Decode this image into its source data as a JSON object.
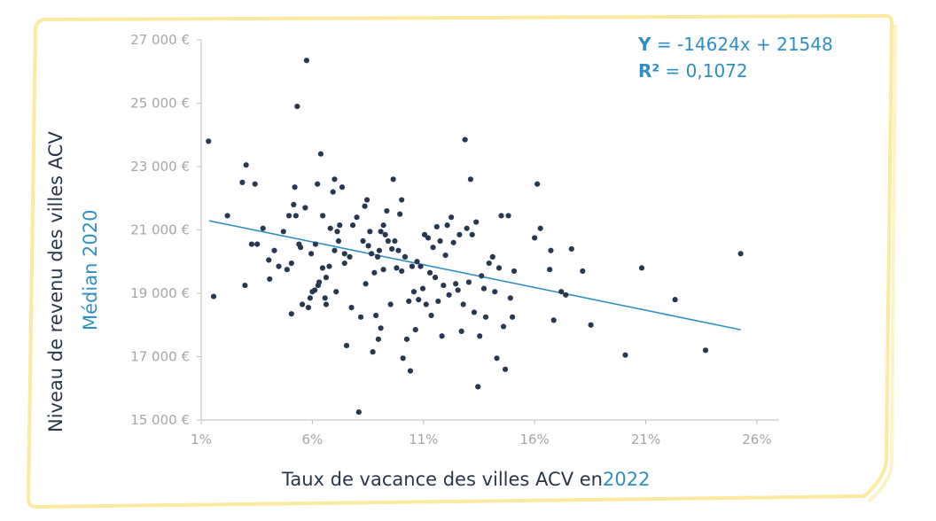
{
  "chart_data": {
    "type": "scatter",
    "xlabel_main": "Taux de vacance des villes ACV en",
    "xlabel_year": "2022",
    "ylabel_main": "Niveau de revenu des villes ACV",
    "ylabel_sub": "Médian 2020",
    "xlim": [
      0.01,
      0.27
    ],
    "ylim": [
      15000,
      27000
    ],
    "x_ticks": [
      {
        "value": 0.01,
        "label": "1%"
      },
      {
        "value": 0.06,
        "label": "6%"
      },
      {
        "value": 0.11,
        "label": "11%"
      },
      {
        "value": 0.16,
        "label": "16%"
      },
      {
        "value": 0.21,
        "label": "21%"
      },
      {
        "value": 0.26,
        "label": "26%"
      }
    ],
    "y_ticks": [
      {
        "value": 15000,
        "label": "15 000 €"
      },
      {
        "value": 17000,
        "label": "17 000 €"
      },
      {
        "value": 19000,
        "label": "19 000 €"
      },
      {
        "value": 21000,
        "label": "21 000 €"
      },
      {
        "value": 23000,
        "label": "23 000 €"
      },
      {
        "value": 25000,
        "label": "25 000 €"
      },
      {
        "value": 27000,
        "label": "27 000 €"
      }
    ],
    "equation": {
      "y_label": "Y",
      "y_rest": " = -14624x + 21548",
      "r2_label": "R²",
      "r2_rest": " = 0,1072"
    },
    "trendline": {
      "x": [
        0.0135,
        0.2527
      ],
      "y": [
        21290,
        17850
      ]
    },
    "point_color": "#283850",
    "line_color": "#2f8fc4",
    "axis_color": "#bfbfbf",
    "frame_color": "#fbeaa0",
    "points": [
      [
        0.0133,
        23800
      ],
      [
        0.0156,
        18900
      ],
      [
        0.0218,
        21450
      ],
      [
        0.0285,
        22500
      ],
      [
        0.0297,
        19250
      ],
      [
        0.0302,
        23050
      ],
      [
        0.0327,
        20550
      ],
      [
        0.0342,
        22450
      ],
      [
        0.0352,
        20550
      ],
      [
        0.0378,
        21050
      ],
      [
        0.0404,
        20050
      ],
      [
        0.0408,
        19450
      ],
      [
        0.0429,
        20350
      ],
      [
        0.0449,
        19850
      ],
      [
        0.047,
        20950
      ],
      [
        0.0486,
        19750
      ],
      [
        0.0495,
        21450
      ],
      [
        0.0506,
        18350
      ],
      [
        0.0506,
        19950
      ],
      [
        0.0516,
        21800
      ],
      [
        0.0521,
        22350
      ],
      [
        0.0526,
        21450
      ],
      [
        0.0532,
        24900
      ],
      [
        0.054,
        20550
      ],
      [
        0.0547,
        20450
      ],
      [
        0.0555,
        18650
      ],
      [
        0.0568,
        21700
      ],
      [
        0.0574,
        26350
      ],
      [
        0.0582,
        18550
      ],
      [
        0.059,
        18850
      ],
      [
        0.0595,
        20250
      ],
      [
        0.06,
        19050
      ],
      [
        0.0611,
        19100
      ],
      [
        0.0614,
        20550
      ],
      [
        0.0623,
        22450
      ],
      [
        0.0626,
        19250
      ],
      [
        0.0631,
        19350
      ],
      [
        0.0638,
        23400
      ],
      [
        0.0646,
        19800
      ],
      [
        0.0647,
        21450
      ],
      [
        0.0657,
        18850
      ],
      [
        0.0662,
        19500
      ],
      [
        0.0662,
        18650
      ],
      [
        0.0676,
        19850
      ],
      [
        0.0681,
        21050
      ],
      [
        0.0693,
        22200
      ],
      [
        0.07,
        20350
      ],
      [
        0.07,
        22600
      ],
      [
        0.0707,
        19050
      ],
      [
        0.0712,
        20950
      ],
      [
        0.0718,
        20650
      ],
      [
        0.0723,
        21150
      ],
      [
        0.0734,
        22350
      ],
      [
        0.0745,
        19950
      ],
      [
        0.0745,
        20250
      ],
      [
        0.0754,
        17350
      ],
      [
        0.0768,
        20150
      ],
      [
        0.0776,
        18550
      ],
      [
        0.0782,
        21150
      ],
      [
        0.08,
        21400
      ],
      [
        0.0809,
        15250
      ],
      [
        0.0818,
        18250
      ],
      [
        0.0828,
        20650
      ],
      [
        0.0836,
        21750
      ],
      [
        0.084,
        19300
      ],
      [
        0.0846,
        21950
      ],
      [
        0.0852,
        20500
      ],
      [
        0.0859,
        20950
      ],
      [
        0.0866,
        20250
      ],
      [
        0.0872,
        17150
      ],
      [
        0.0879,
        19650
      ],
      [
        0.0886,
        18300
      ],
      [
        0.0894,
        20150
      ],
      [
        0.0897,
        17550
      ],
      [
        0.0901,
        20350
      ],
      [
        0.0908,
        17900
      ],
      [
        0.0908,
        20950
      ],
      [
        0.092,
        19750
      ],
      [
        0.092,
        21150
      ],
      [
        0.0928,
        20850
      ],
      [
        0.0935,
        21600
      ],
      [
        0.0941,
        20650
      ],
      [
        0.0952,
        18650
      ],
      [
        0.0958,
        20400
      ],
      [
        0.0964,
        22600
      ],
      [
        0.0971,
        20650
      ],
      [
        0.0979,
        19800
      ],
      [
        0.0987,
        20350
      ],
      [
        0.0994,
        21500
      ],
      [
        0.1002,
        19700
      ],
      [
        0.1002,
        21950
      ],
      [
        0.1008,
        16950
      ],
      [
        0.1017,
        20150
      ],
      [
        0.1025,
        17550
      ],
      [
        0.1034,
        18750
      ],
      [
        0.1041,
        16550
      ],
      [
        0.1049,
        19850
      ],
      [
        0.1057,
        19050
      ],
      [
        0.1064,
        17850
      ],
      [
        0.1071,
        20000
      ],
      [
        0.1078,
        18800
      ],
      [
        0.1087,
        19850
      ],
      [
        0.1097,
        19150
      ],
      [
        0.1105,
        20850
      ],
      [
        0.1112,
        18650
      ],
      [
        0.1121,
        20750
      ],
      [
        0.1129,
        19650
      ],
      [
        0.1135,
        18300
      ],
      [
        0.1143,
        20450
      ],
      [
        0.1153,
        19500
      ],
      [
        0.116,
        21100
      ],
      [
        0.1166,
        18750
      ],
      [
        0.1175,
        20650
      ],
      [
        0.1183,
        17650
      ],
      [
        0.119,
        19250
      ],
      [
        0.1199,
        20200
      ],
      [
        0.1207,
        21150
      ],
      [
        0.1215,
        18950
      ],
      [
        0.1225,
        21400
      ],
      [
        0.1235,
        20600
      ],
      [
        0.1245,
        19300
      ],
      [
        0.1255,
        19100
      ],
      [
        0.1262,
        20850
      ],
      [
        0.1271,
        17800
      ],
      [
        0.1279,
        18650
      ],
      [
        0.1287,
        23850
      ],
      [
        0.1295,
        21050
      ],
      [
        0.1304,
        19350
      ],
      [
        0.1312,
        22600
      ],
      [
        0.1319,
        20850
      ],
      [
        0.1328,
        18400
      ],
      [
        0.1337,
        21250
      ],
      [
        0.1345,
        16050
      ],
      [
        0.1353,
        17650
      ],
      [
        0.1361,
        19550
      ],
      [
        0.1372,
        19150
      ],
      [
        0.138,
        18250
      ],
      [
        0.1395,
        19950
      ],
      [
        0.1411,
        20150
      ],
      [
        0.1421,
        19050
      ],
      [
        0.143,
        16950
      ],
      [
        0.144,
        19800
      ],
      [
        0.145,
        21450
      ],
      [
        0.146,
        17950
      ],
      [
        0.1468,
        16600
      ],
      [
        0.1482,
        21450
      ],
      [
        0.1491,
        18850
      ],
      [
        0.15,
        18250
      ],
      [
        0.1508,
        19700
      ],
      [
        0.16,
        20750
      ],
      [
        0.1612,
        22450
      ],
      [
        0.1626,
        21050
      ],
      [
        0.1668,
        19750
      ],
      [
        0.1673,
        20350
      ],
      [
        0.1686,
        18150
      ],
      [
        0.172,
        19050
      ],
      [
        0.174,
        18950
      ],
      [
        0.1766,
        20400
      ],
      [
        0.1816,
        19700
      ],
      [
        0.1853,
        18000
      ],
      [
        0.2008,
        17050
      ],
      [
        0.2082,
        19800
      ],
      [
        0.2232,
        18800
      ],
      [
        0.2369,
        17200
      ],
      [
        0.2527,
        20250
      ]
    ]
  }
}
